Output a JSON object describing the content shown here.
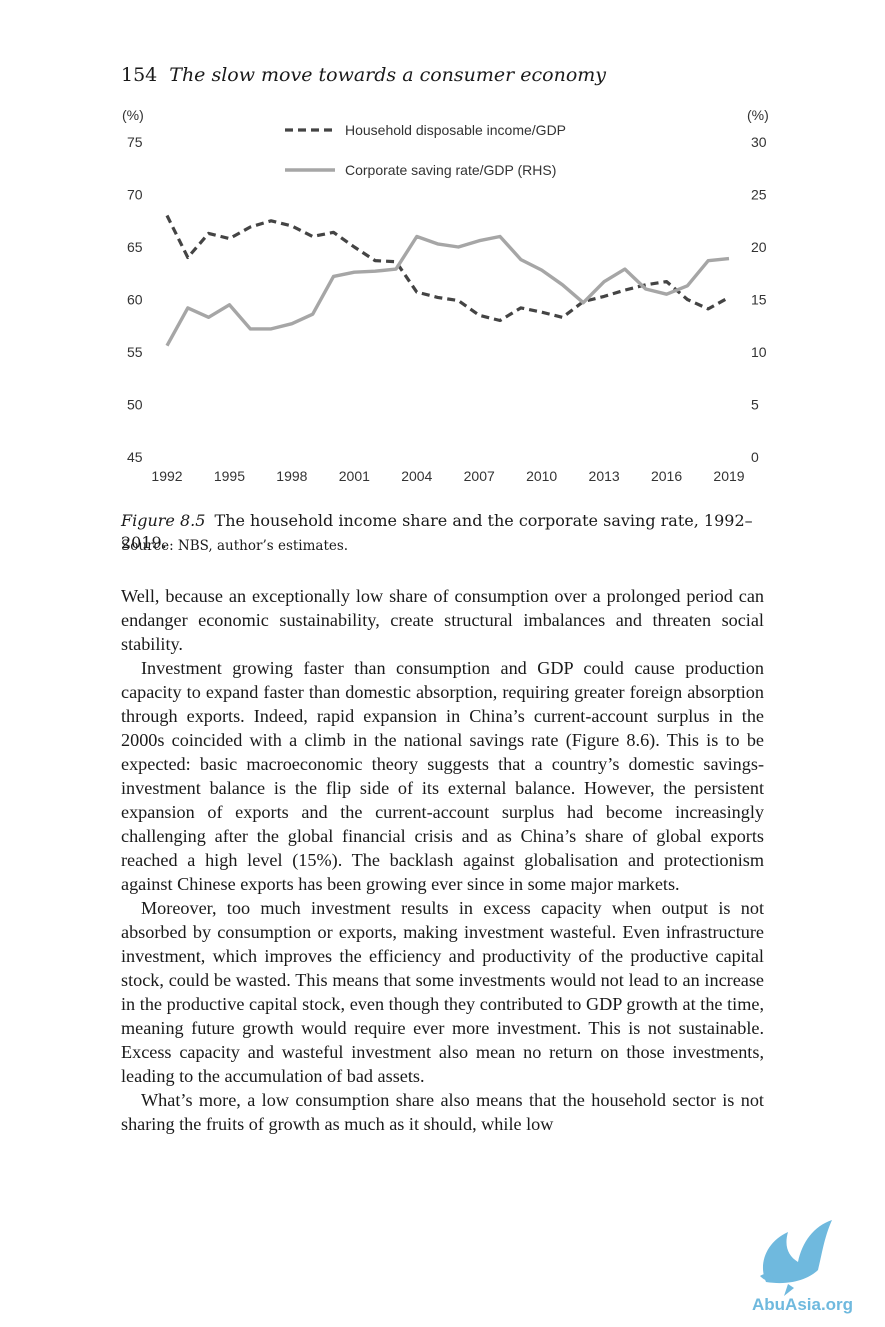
{
  "header": {
    "page_number": "154",
    "running_title": "The slow move towards a consumer economy"
  },
  "chart_data": {
    "type": "line",
    "left_unit": "(%)",
    "right_unit": "(%)",
    "ylim_left": [
      45,
      75
    ],
    "ylim_right": [
      0,
      30
    ],
    "yticks_left": [
      "45",
      "50",
      "55",
      "60",
      "65",
      "70",
      "75"
    ],
    "yticks_right": [
      "0",
      "5",
      "10",
      "15",
      "20",
      "25",
      "30"
    ],
    "x_ticks": [
      "1992",
      "1995",
      "1998",
      "2001",
      "2004",
      "2007",
      "2010",
      "2013",
      "2016",
      "2019"
    ],
    "x": [
      1992,
      1993,
      1994,
      1995,
      1996,
      1997,
      1998,
      1999,
      2000,
      2001,
      2002,
      2003,
      2004,
      2005,
      2006,
      2007,
      2008,
      2009,
      2010,
      2011,
      2012,
      2013,
      2014,
      2015,
      2016,
      2017,
      2018,
      2019
    ],
    "grid": false,
    "legend_position": "top-center",
    "series": [
      {
        "name": "Household disposable income/GDP",
        "axis": "left",
        "style": "dashed",
        "color": "#444444",
        "values": [
          68.0,
          64.0,
          66.3,
          65.8,
          66.9,
          67.5,
          67.0,
          66.0,
          66.4,
          65.0,
          63.7,
          63.6,
          60.7,
          60.2,
          59.9,
          58.5,
          58.0,
          59.2,
          58.8,
          58.3,
          59.8,
          60.3,
          60.9,
          61.4,
          61.7,
          60.0,
          59.1,
          60.2
        ]
      },
      {
        "name": "Corporate saving rate/GDP (RHS)",
        "axis": "right",
        "style": "solid",
        "color": "#a6a6a6",
        "values": [
          10.6,
          14.2,
          13.3,
          14.5,
          12.2,
          12.2,
          12.7,
          13.6,
          17.2,
          17.6,
          17.7,
          17.9,
          21.0,
          20.3,
          20.0,
          20.6,
          21.0,
          18.8,
          17.8,
          16.4,
          14.7,
          16.7,
          17.9,
          16.0,
          15.5,
          16.3,
          18.7,
          18.9
        ]
      }
    ]
  },
  "caption": {
    "figure_label": "Figure 8.5",
    "text": "The household income share and the corporate saving rate, 1992–2019.",
    "source": "Source: NBS, author’s estimates."
  },
  "body": {
    "paragraphs": [
      "Well, because an exceptionally low share of consumption over a prolonged period can endanger economic sustainability, create structural imbalances and threaten social stability.",
      "Investment growing faster than consumption and GDP could cause production capacity to expand faster than domestic absorption, requiring greater foreign absorption through exports. Indeed, rapid expansion in China’s current-account surplus in the 2000s coincided with a climb in the national savings rate (Figure 8.6). This is to be expected: basic macroeconomic theory suggests that a country’s domestic savings-investment balance is the flip side of its external balance. However, the persistent expansion of exports and the current-account surplus had become increasingly challenging after the global financial crisis and as China’s share of global exports reached a high level (15%). The backlash against globalisation and protectionism against Chinese exports has been growing ever since in some major markets.",
      "Moreover, too much investment results in excess capacity when output is not absorbed by consumption or exports, making investment wasteful. Even infrastructure investment, which improves the efficiency and productivity of the productive capital stock, could be wasted. This means that some investments would not lead to an increase in the productive capital stock, even though they contributed to GDP growth at the time, meaning future growth would require ever more investment. This is not sustainable. Excess capacity and wasteful investment also mean no return on those investments, leading to the accumulation of bad assets.",
      "What’s more, a low consumption share also means that the household sector is not sharing the fruits of growth as much as it should, while low"
    ]
  },
  "watermark": {
    "text": "AbuAsia.org"
  }
}
